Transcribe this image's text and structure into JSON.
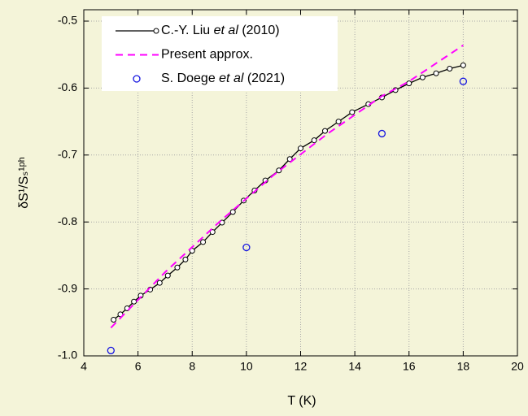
{
  "chart_data": {
    "type": "line",
    "xlabel": "T (K)",
    "ylabel": "δS¹/Sₛ¹ᵖʰ",
    "xlim": [
      4,
      20
    ],
    "ylim": [
      -1.0,
      -0.483
    ],
    "xticks": [
      4,
      6,
      8,
      10,
      12,
      14,
      16,
      18,
      20
    ],
    "yticks": [
      {
        "value": -1,
        "label": "-1.0"
      },
      -0.9,
      -0.8,
      -0.7,
      -0.6,
      -0.5
    ],
    "grid": true,
    "legend": "top-left",
    "series": [
      {
        "name": "C.-Y. Liu et al (2010)",
        "color": "#000000",
        "line_style": "solid",
        "marker": "circle",
        "x": [
          5.1,
          5.35,
          5.6,
          5.85,
          6.1,
          6.45,
          6.8,
          7.1,
          7.45,
          7.75,
          8.0,
          8.4,
          8.75,
          9.1,
          9.5,
          9.9,
          10.3,
          10.7,
          11.2,
          11.6,
          12.0,
          12.5,
          12.9,
          13.4,
          13.9,
          14.5,
          15.0,
          15.5,
          16.0,
          16.5,
          17.0,
          17.5,
          18.0
        ],
        "values": [
          -0.946,
          -0.938,
          -0.929,
          -0.919,
          -0.91,
          -0.901,
          -0.891,
          -0.88,
          -0.868,
          -0.856,
          -0.843,
          -0.83,
          -0.815,
          -0.801,
          -0.785,
          -0.768,
          -0.753,
          -0.738,
          -0.723,
          -0.706,
          -0.69,
          -0.678,
          -0.664,
          -0.65,
          -0.636,
          -0.624,
          -0.614,
          -0.603,
          -0.593,
          -0.584,
          -0.578,
          -0.571,
          -0.566
        ]
      },
      {
        "name": "Present approx.",
        "color": "#ff00ff",
        "line_style": "dashed",
        "marker": null,
        "x": [
          5,
          7,
          9,
          11,
          13,
          15,
          16,
          18
        ],
        "values": [
          -0.958,
          -0.875,
          -0.8,
          -0.73,
          -0.668,
          -0.612,
          -0.59,
          -0.536
        ]
      },
      {
        "name": "S. Doege et al (2021)",
        "color": "#1515e0",
        "line_style": null,
        "marker": "circle",
        "x": [
          5,
          10,
          15,
          18
        ],
        "values": [
          -0.992,
          -0.838,
          -0.668,
          -0.59
        ]
      }
    ]
  }
}
